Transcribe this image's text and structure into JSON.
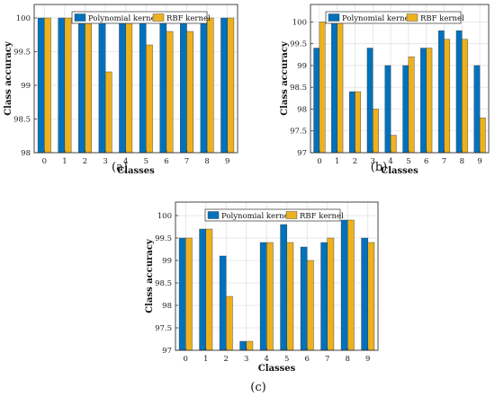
{
  "colors": {
    "polynomial": "#0072BD",
    "rbf": "#EDB120"
  },
  "chart_data": [
    {
      "type": "bar",
      "caption": "(a)",
      "xlabel": "Classes",
      "ylabel": "Class accuracy",
      "categories": [
        "0",
        "1",
        "2",
        "3",
        "4",
        "5",
        "6",
        "7",
        "8",
        "9"
      ],
      "ylim": [
        98,
        100.2
      ],
      "yticks": [
        "98",
        "98.5",
        "99",
        "99.5",
        "100"
      ],
      "grid": true,
      "legend_position": "top-center",
      "series": [
        {
          "name": "Polynomial kernel",
          "values": [
            100,
            100,
            100,
            100,
            100,
            100,
            100,
            100,
            100,
            100
          ]
        },
        {
          "name": "RBF kernel",
          "values": [
            100,
            100,
            100,
            99.2,
            100,
            99.6,
            99.8,
            99.8,
            100,
            100
          ]
        }
      ]
    },
    {
      "type": "bar",
      "caption": "(b)",
      "xlabel": "Classes",
      "ylabel": "Class accuracy",
      "categories": [
        "0",
        "1",
        "2",
        "3",
        "4",
        "5",
        "6",
        "7",
        "8",
        "9"
      ],
      "ylim": [
        97,
        100.4
      ],
      "yticks": [
        "97",
        "97.5",
        "98",
        "98.5",
        "99",
        "99.5",
        "100"
      ],
      "grid": true,
      "legend_position": "top-center",
      "series": [
        {
          "name": "Polynomial kernel",
          "values": [
            99.4,
            100,
            98.4,
            99.4,
            99.0,
            99.0,
            99.4,
            99.8,
            99.8,
            99.0
          ]
        },
        {
          "name": "RBF kernel",
          "values": [
            100,
            100,
            98.4,
            98.0,
            97.4,
            99.2,
            99.4,
            99.6,
            99.6,
            97.8
          ]
        }
      ]
    },
    {
      "type": "bar",
      "caption": "(c)",
      "xlabel": "Classes",
      "ylabel": "Class accuracy",
      "categories": [
        "0",
        "1",
        "2",
        "3",
        "4",
        "5",
        "6",
        "7",
        "8",
        "9"
      ],
      "ylim": [
        97,
        100.3
      ],
      "yticks": [
        "97",
        "97.5",
        "98",
        "98.5",
        "99",
        "99.5",
        "100"
      ],
      "grid": true,
      "legend_position": "top-center",
      "series": [
        {
          "name": "Polynomial kernel",
          "values": [
            99.5,
            99.7,
            99.1,
            97.2,
            99.4,
            99.8,
            99.3,
            99.4,
            99.9,
            99.5
          ]
        },
        {
          "name": "RBF kernel",
          "values": [
            99.5,
            99.7,
            98.2,
            97.2,
            99.4,
            99.4,
            99.0,
            99.5,
            99.9,
            99.4
          ]
        }
      ]
    }
  ]
}
